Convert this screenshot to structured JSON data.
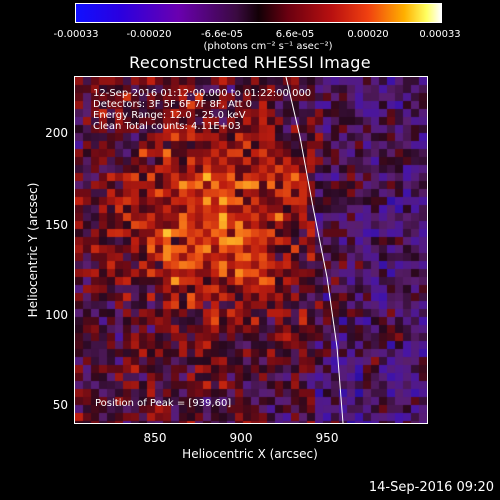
{
  "colorbar": {
    "ticks": [
      "-0.00033",
      "-0.00020",
      "-6.6e-05",
      "6.6e-05",
      "0.00020",
      "0.00033"
    ],
    "unit_label": "(photons cm⁻² s⁻¹ asec⁻²)"
  },
  "plot": {
    "title": "Reconstructed RHESSI Image",
    "annotations": [
      "12-Sep-2016 01:12:00.000 to 01:22:00.000",
      "Detectors: 3F 5F 6F 7F 8F, Att 0",
      "Energy Range: 12.0 - 25.0 keV",
      "Clean     Total counts: 4.11E+03"
    ],
    "peak_label": "Position of Peak = [939,60]",
    "xlabel": "Heliocentric X (arcsec)",
    "ylabel": "Heliocentric Y (arcsec)",
    "xticks": [
      "850",
      "900",
      "950"
    ],
    "yticks": [
      "50",
      "100",
      "150",
      "200"
    ]
  },
  "footer": {
    "date": "14-Sep-2016 09:20"
  }
}
